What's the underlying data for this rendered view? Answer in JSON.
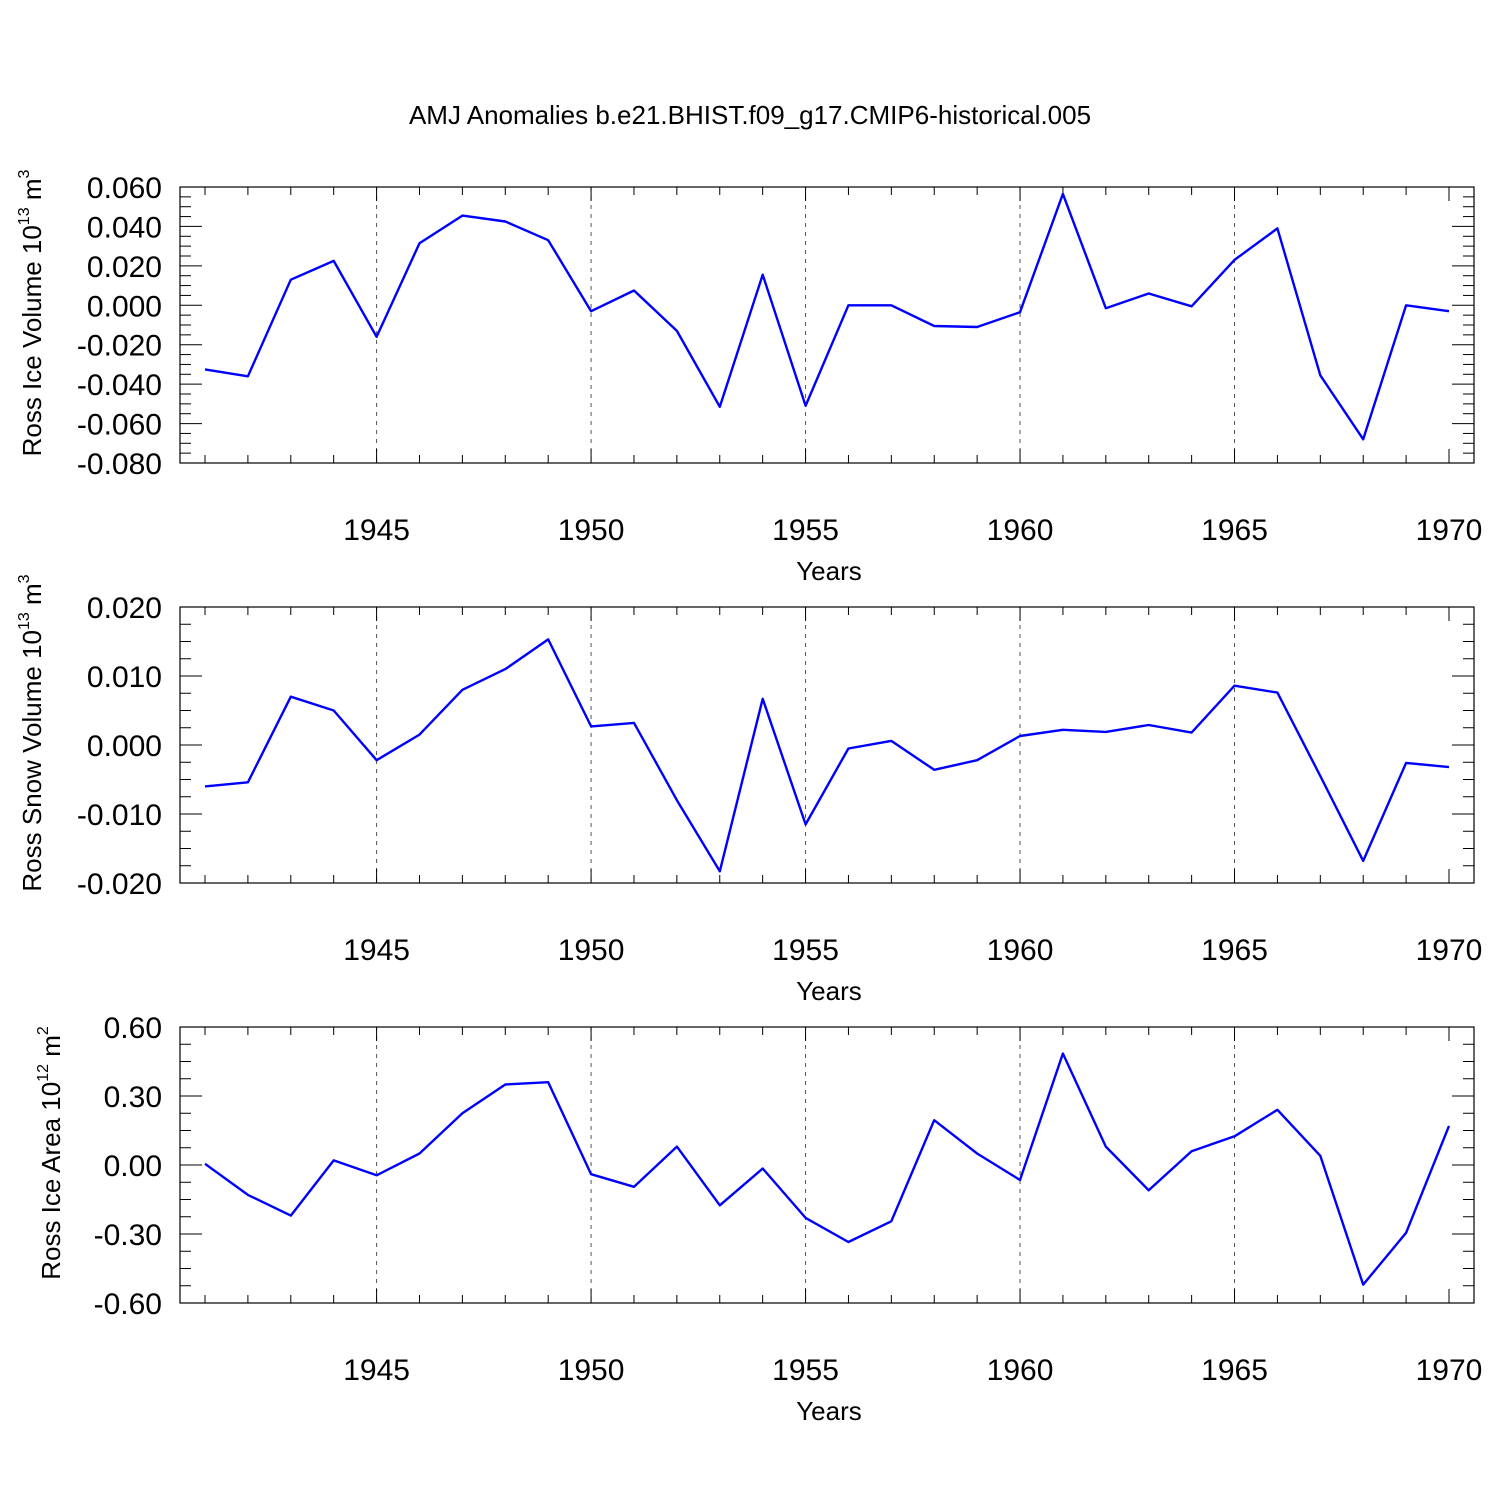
{
  "figure": {
    "title": "AMJ Anomalies b.e21.BHIST.f09_g17.CMIP6-historical.005",
    "line_color": "#0000ff"
  },
  "chart_data": [
    {
      "type": "line",
      "ylabel": {
        "text": "Ross Ice Volume 10",
        "sup": "13",
        "unit": " m",
        "unit_sup": "3"
      },
      "xlabel": "Years",
      "xlim": [
        1941,
        1970
      ],
      "ylim": [
        -0.08,
        0.06
      ],
      "y_ticks": [
        {
          "value": 0.06,
          "label": "0.060"
        },
        {
          "value": 0.04,
          "label": "0.040"
        },
        {
          "value": 0.02,
          "label": "0.020"
        },
        {
          "value": 0.0,
          "label": "0.000"
        },
        {
          "value": -0.02,
          "label": "-0.020"
        },
        {
          "value": -0.04,
          "label": "-0.040"
        },
        {
          "value": -0.06,
          "label": "-0.060"
        },
        {
          "value": -0.08,
          "label": "-0.080"
        }
      ],
      "x_ticks": [
        {
          "value": 1945,
          "label": "1945"
        },
        {
          "value": 1950,
          "label": "1950"
        },
        {
          "value": 1955,
          "label": "1955"
        },
        {
          "value": 1960,
          "label": "1960"
        },
        {
          "value": 1965,
          "label": "1965"
        },
        {
          "value": 1970,
          "label": "1970"
        }
      ],
      "x": [
        1941,
        1942,
        1943,
        1944,
        1945,
        1946,
        1947,
        1948,
        1949,
        1950,
        1951,
        1952,
        1953,
        1954,
        1955,
        1956,
        1957,
        1958,
        1959,
        1960,
        1961,
        1962,
        1963,
        1964,
        1965,
        1966,
        1967,
        1968,
        1969,
        1970
      ],
      "y": [
        -0.0325,
        -0.036,
        0.013,
        0.0225,
        -0.016,
        0.0315,
        0.0455,
        0.0425,
        0.033,
        -0.003,
        0.0075,
        -0.013,
        -0.0515,
        0.0155,
        -0.051,
        0.0,
        0.0,
        -0.0105,
        -0.011,
        -0.0035,
        0.0565,
        -0.0015,
        0.006,
        -0.0005,
        0.023,
        0.039,
        -0.0355,
        -0.068,
        0.0,
        -0.003
      ]
    },
    {
      "type": "line",
      "ylabel": {
        "text": "Ross Snow Volume 10",
        "sup": "13",
        "unit": " m",
        "unit_sup": "3"
      },
      "xlabel": "Years",
      "xlim": [
        1941,
        1970
      ],
      "ylim": [
        -0.02,
        0.02
      ],
      "y_ticks": [
        {
          "value": 0.02,
          "label": "0.020"
        },
        {
          "value": 0.01,
          "label": "0.010"
        },
        {
          "value": 0.0,
          "label": "0.000"
        },
        {
          "value": -0.01,
          "label": "-0.010"
        },
        {
          "value": -0.02,
          "label": "-0.020"
        }
      ],
      "x_ticks": [
        {
          "value": 1945,
          "label": "1945"
        },
        {
          "value": 1950,
          "label": "1950"
        },
        {
          "value": 1955,
          "label": "1955"
        },
        {
          "value": 1960,
          "label": "1960"
        },
        {
          "value": 1965,
          "label": "1965"
        },
        {
          "value": 1970,
          "label": "1970"
        }
      ],
      "x": [
        1941,
        1942,
        1943,
        1944,
        1945,
        1946,
        1947,
        1948,
        1949,
        1950,
        1951,
        1952,
        1953,
        1954,
        1955,
        1956,
        1957,
        1958,
        1959,
        1960,
        1961,
        1962,
        1963,
        1964,
        1965,
        1966,
        1967,
        1968,
        1969,
        1970
      ],
      "y": [
        -0.006,
        -0.0054,
        0.007,
        0.005,
        -0.0022,
        0.0015,
        0.008,
        0.011,
        0.0153,
        0.0027,
        0.0032,
        -0.008,
        -0.0183,
        0.0067,
        -0.0115,
        -0.0005,
        0.0006,
        -0.0036,
        -0.0022,
        0.0013,
        0.0022,
        0.0019,
        0.0029,
        0.0018,
        0.0086,
        0.0076,
        -0.0045,
        -0.0168,
        -0.0026,
        -0.0032
      ]
    },
    {
      "type": "line",
      "ylabel": {
        "text": "Ross Ice Area 10",
        "sup": "12",
        "unit": " m",
        "unit_sup": "2"
      },
      "xlabel": "Years",
      "xlim": [
        1941,
        1970
      ],
      "ylim": [
        -0.6,
        0.6
      ],
      "y_ticks": [
        {
          "value": 0.6,
          "label": "0.60"
        },
        {
          "value": 0.3,
          "label": "0.30"
        },
        {
          "value": 0.0,
          "label": "0.00"
        },
        {
          "value": -0.3,
          "label": "-0.30"
        },
        {
          "value": -0.6,
          "label": "-0.60"
        }
      ],
      "x_ticks": [
        {
          "value": 1945,
          "label": "1945"
        },
        {
          "value": 1950,
          "label": "1950"
        },
        {
          "value": 1955,
          "label": "1955"
        },
        {
          "value": 1960,
          "label": "1960"
        },
        {
          "value": 1965,
          "label": "1965"
        },
        {
          "value": 1970,
          "label": "1970"
        }
      ],
      "x": [
        1941,
        1942,
        1943,
        1944,
        1945,
        1946,
        1947,
        1948,
        1949,
        1950,
        1951,
        1952,
        1953,
        1954,
        1955,
        1956,
        1957,
        1958,
        1959,
        1960,
        1961,
        1962,
        1963,
        1964,
        1965,
        1966,
        1967,
        1968,
        1969,
        1970
      ],
      "y": [
        0.005,
        -0.13,
        -0.22,
        0.02,
        -0.045,
        0.05,
        0.225,
        0.35,
        0.36,
        -0.04,
        -0.095,
        0.08,
        -0.175,
        -0.015,
        -0.23,
        -0.335,
        -0.245,
        0.195,
        0.05,
        -0.065,
        0.485,
        0.08,
        -0.11,
        0.06,
        0.125,
        0.24,
        0.04,
        -0.52,
        -0.295,
        0.17
      ]
    }
  ]
}
